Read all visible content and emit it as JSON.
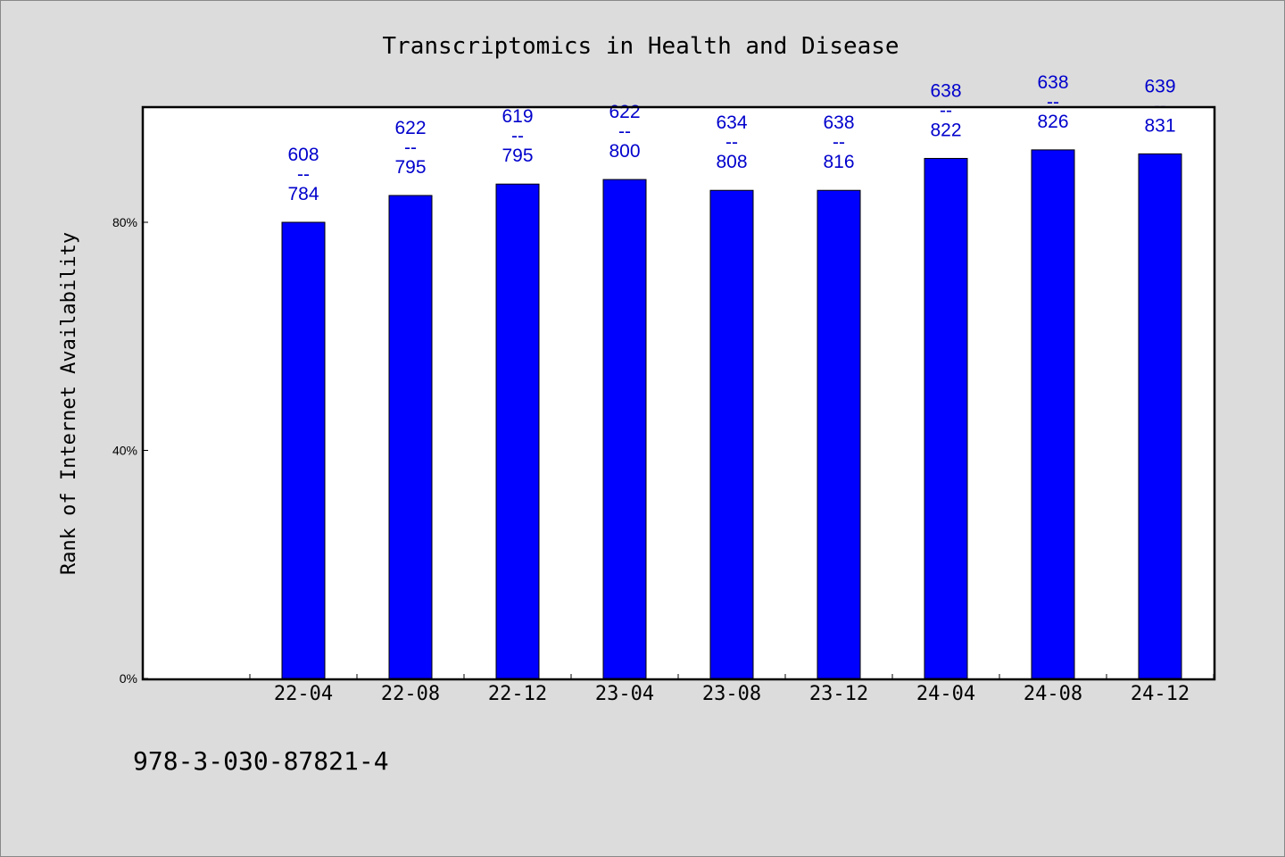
{
  "chart_data": {
    "type": "bar",
    "title": "Transcriptomics in Health and Disease",
    "xlabel": "",
    "ylabel": "Rank of Internet Availability",
    "categories": [
      "22-04",
      "22-08",
      "22-12",
      "23-04",
      "23-08",
      "23-12",
      "24-04",
      "24-08",
      "24-12"
    ],
    "values": [
      80,
      84.7,
      86.7,
      87.5,
      85.6,
      85.6,
      91.2,
      92.7,
      92.0
    ],
    "data_labels": [
      {
        "top": "608",
        "sep": "--",
        "bottom": "784"
      },
      {
        "top": "622",
        "sep": "--",
        "bottom": "795"
      },
      {
        "top": "619",
        "sep": "--",
        "bottom": "795"
      },
      {
        "top": "622",
        "sep": "--",
        "bottom": "800"
      },
      {
        "top": "634",
        "sep": "--",
        "bottom": "808"
      },
      {
        "top": "638",
        "sep": "--",
        "bottom": "816"
      },
      {
        "top": "638",
        "sep": "--",
        "bottom": "822"
      },
      {
        "top": "638",
        "sep": "--",
        "bottom": "826"
      },
      {
        "top": "639",
        "sep": "--",
        "bottom": "831"
      }
    ],
    "yticks": [
      0,
      40,
      80
    ],
    "ytick_labels": [
      "0%",
      "40%",
      "80%"
    ],
    "ylim": [
      0,
      100
    ],
    "grid": false,
    "legend": "none",
    "bar_color": "#0000ff",
    "label_color": "#0000cc"
  },
  "footnote": "978-3-030-87821-4",
  "colors": {
    "background": "#dcdcdc",
    "plot_background": "#ffffff"
  }
}
